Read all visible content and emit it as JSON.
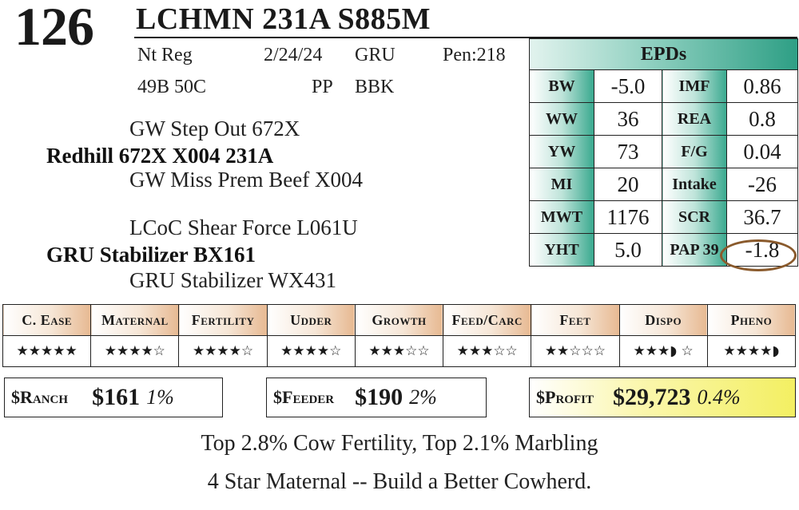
{
  "header": {
    "lot_number": "126",
    "animal_name": "LCHMN 231A S885M"
  },
  "meta": {
    "registry": "Nt Reg",
    "birth_date": "2/24/24",
    "breeder_code": "GRU",
    "pen": "Pen:218",
    "markings": "49B 50C",
    "polled": "PP",
    "color": "BBK"
  },
  "pedigree": {
    "sire_sire": "GW Step Out 672X",
    "sire": "Redhill 672X X004 231A",
    "sire_dam": "GW Miss Prem Beef X004",
    "dam_sire": "LCoC Shear Force L061U",
    "dam": "GRU Stabilizer BX161",
    "dam_dam": "GRU Stabilizer WX431"
  },
  "epds": {
    "title": "EPDs",
    "rows": [
      {
        "label1": "BW",
        "value1": "-5.0",
        "label2": "IMF",
        "value2": "0.86"
      },
      {
        "label1": "WW",
        "value1": "36",
        "label2": "REA",
        "value2": "0.8"
      },
      {
        "label1": "YW",
        "value1": "73",
        "label2": "F/G",
        "value2": "0.04"
      },
      {
        "label1": "MI",
        "value1": "20",
        "label2": "Intake",
        "value2": "-26"
      },
      {
        "label1": "MWT",
        "value1": "1176",
        "label2": "SCR",
        "value2": "36.7"
      },
      {
        "label1": "YHT",
        "value1": "5.0",
        "label2": "PAP 39",
        "value2": "-1.8"
      }
    ],
    "highlight_color": "#8a5a2c"
  },
  "ratings": {
    "categories": [
      "C. Ease",
      "Maternal",
      "Fertility",
      "Udder",
      "Growth",
      "Feed/Carc",
      "Feet",
      "Dispo",
      "Pheno"
    ],
    "stars": [
      5,
      4,
      4,
      4,
      3,
      3,
      2,
      3.5,
      4.5
    ],
    "star_text": [
      "★★★★★",
      "★★★★☆",
      "★★★★☆",
      "★★★★☆",
      "★★★☆☆",
      "★★★☆☆",
      "★★☆☆☆",
      "★★★◗ ☆",
      "★★★★◗"
    ]
  },
  "indexes": {
    "ranch": {
      "label": "$Ranch",
      "value": "$161",
      "pct": "1%"
    },
    "feeder": {
      "label": "$Feeder",
      "value": "$190",
      "pct": "2%"
    },
    "profit": {
      "label": "$Profit",
      "value": "$29,723",
      "pct": "0.4%"
    }
  },
  "footer": {
    "line1": "Top 2.8% Cow Fertility, Top 2.1% Marbling",
    "line2": "4 Star Maternal -- Build a Better Cowherd."
  },
  "colors": {
    "epd_accent": "#2e9f85",
    "rating_accent": "#e7b992",
    "profit_accent": "#f3ef62"
  }
}
